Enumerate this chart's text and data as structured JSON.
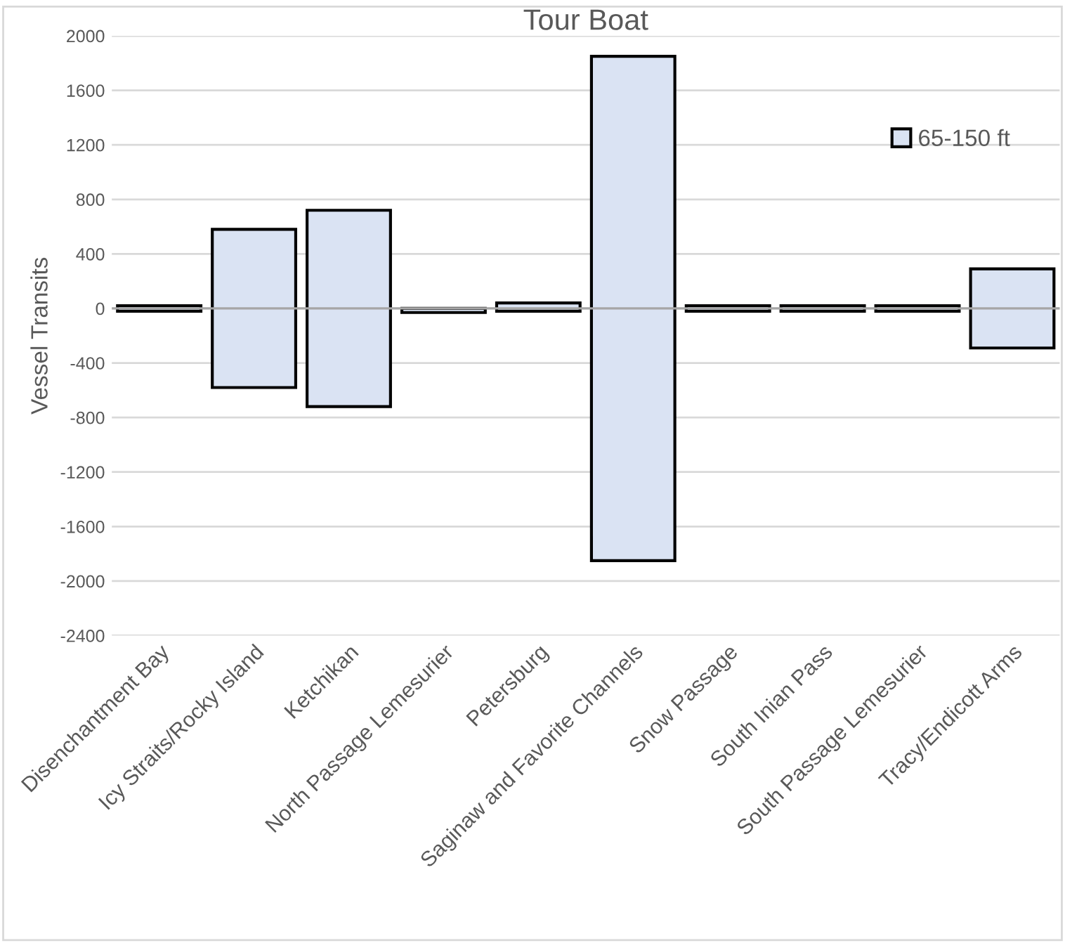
{
  "chart_data": {
    "type": "bar",
    "title": "Tour Boat",
    "ylabel": "Vessel Transits",
    "categories": [
      "Disenchantment Bay",
      "Icy Straits/Rocky Island",
      "Ketchikan",
      "North Passage Lemesurier",
      "Petersburg",
      "Saginaw and Favorite Channels",
      "Snow Passage",
      "South Inian Pass",
      "South Passage Lemesurier",
      "Tracy/Endicott Arms"
    ],
    "series": [
      {
        "name": "65-150 ft",
        "color": "#dae3f3",
        "base": [
          -20,
          -580,
          -720,
          -30,
          -20,
          -1850,
          -20,
          -20,
          -20,
          -290
        ],
        "values": [
          40,
          1160,
          1440,
          30,
          60,
          3700,
          40,
          40,
          40,
          580
        ]
      }
    ],
    "ylim": [
      -2400,
      2000
    ],
    "yticks": [
      -2400,
      -2000,
      -1600,
      -1200,
      -800,
      -400,
      0,
      400,
      800,
      1200,
      1600,
      2000
    ],
    "ref_lines": [
      {
        "axis": "y",
        "value": 0,
        "color": "#a6a6a6"
      }
    ],
    "grid": "y",
    "legend": "top right"
  }
}
